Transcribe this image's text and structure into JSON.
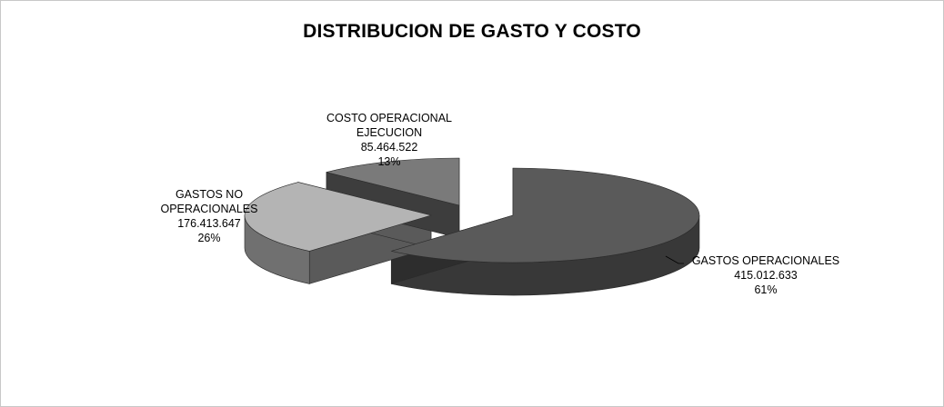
{
  "chart_data": {
    "type": "pie",
    "title": "DISTRIBUCION DE GASTO Y COSTO",
    "three_d": true,
    "exploded": true,
    "legend": "none",
    "slices": [
      {
        "label_lines": [
          "GASTOS OPERACIONALES"
        ],
        "value": 415012633,
        "value_text": "415.012.633",
        "percent_text": "61%",
        "color": "#5a5a5a"
      },
      {
        "label_lines": [
          "GASTOS NO",
          "OPERACIONALES"
        ],
        "value": 176413647,
        "value_text": "176.413.647",
        "percent_text": "26%",
        "color": "#b4b4b4"
      },
      {
        "label_lines": [
          "COSTO OPERACIONAL",
          "EJECUCION"
        ],
        "value": 85464522,
        "value_text": "85.464.522",
        "percent_text": "13%",
        "color": "#7a7a7a"
      }
    ]
  }
}
